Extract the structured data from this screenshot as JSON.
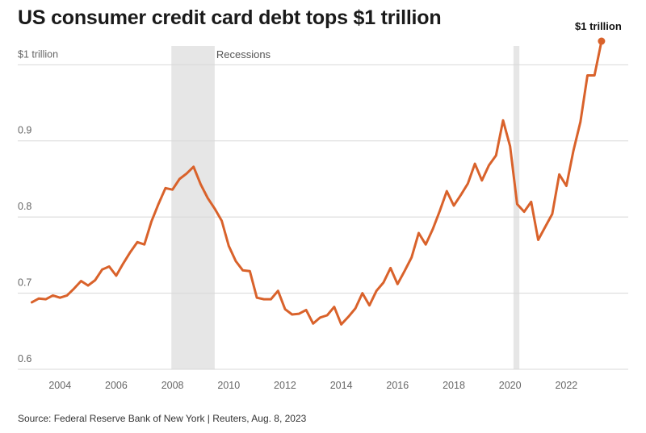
{
  "title": "US consumer credit card debt tops $1 trillion",
  "source": "Source: Federal Reserve Bank of New York | Reuters, Aug. 8, 2023",
  "colors": {
    "line": "#d9622b",
    "recession": "#e6e6e6",
    "grid": "#d8d8d8"
  },
  "chart_data": {
    "type": "line",
    "title": "US consumer credit card debt tops $1 trillion",
    "xlabel": "",
    "ylabel": "",
    "xlim": [
      2002.5,
      2024.2
    ],
    "ylim": [
      0.6,
      1.03
    ],
    "x_ticks": [
      {
        "value": 2004,
        "label": "2004"
      },
      {
        "value": 2006,
        "label": "2006"
      },
      {
        "value": 2008,
        "label": "2008"
      },
      {
        "value": 2010,
        "label": "2010"
      },
      {
        "value": 2012,
        "label": "2012"
      },
      {
        "value": 2014,
        "label": "2014"
      },
      {
        "value": 2016,
        "label": "2016"
      },
      {
        "value": 2018,
        "label": "2018"
      },
      {
        "value": 2020,
        "label": "2020"
      },
      {
        "value": 2022,
        "label": "2022"
      }
    ],
    "y_ticks": [
      {
        "value": 0.6,
        "label": "0.6"
      },
      {
        "value": 0.7,
        "label": "0.7"
      },
      {
        "value": 0.8,
        "label": "0.8"
      },
      {
        "value": 0.9,
        "label": "0.9"
      },
      {
        "value": 1.0,
        "label": "$1 trillion"
      }
    ],
    "recessions": {
      "label": "Recessions",
      "ranges": [
        [
          2007.96,
          2009.5
        ],
        [
          2020.12,
          2020.33
        ]
      ]
    },
    "end_label": "$1 trillion",
    "series": [
      {
        "values": [
          [
            2003.0,
            0.688
          ],
          [
            2003.25,
            0.693
          ],
          [
            2003.5,
            0.692
          ],
          [
            2003.75,
            0.697
          ],
          [
            2004.0,
            0.694
          ],
          [
            2004.25,
            0.697
          ],
          [
            2004.5,
            0.706
          ],
          [
            2004.75,
            0.716
          ],
          [
            2005.0,
            0.71
          ],
          [
            2005.25,
            0.717
          ],
          [
            2005.5,
            0.731
          ],
          [
            2005.75,
            0.735
          ],
          [
            2006.0,
            0.723
          ],
          [
            2006.25,
            0.739
          ],
          [
            2006.5,
            0.754
          ],
          [
            2006.75,
            0.767
          ],
          [
            2007.0,
            0.764
          ],
          [
            2007.25,
            0.794
          ],
          [
            2007.5,
            0.817
          ],
          [
            2007.75,
            0.838
          ],
          [
            2008.0,
            0.836
          ],
          [
            2008.25,
            0.85
          ],
          [
            2008.5,
            0.857
          ],
          [
            2008.75,
            0.866
          ],
          [
            2009.0,
            0.843
          ],
          [
            2009.25,
            0.825
          ],
          [
            2009.5,
            0.811
          ],
          [
            2009.75,
            0.795
          ],
          [
            2010.0,
            0.762
          ],
          [
            2010.25,
            0.742
          ],
          [
            2010.5,
            0.73
          ],
          [
            2010.75,
            0.729
          ],
          [
            2011.0,
            0.694
          ],
          [
            2011.25,
            0.692
          ],
          [
            2011.5,
            0.692
          ],
          [
            2011.75,
            0.703
          ],
          [
            2012.0,
            0.679
          ],
          [
            2012.25,
            0.672
          ],
          [
            2012.5,
            0.673
          ],
          [
            2012.75,
            0.678
          ],
          [
            2013.0,
            0.66
          ],
          [
            2013.25,
            0.668
          ],
          [
            2013.5,
            0.671
          ],
          [
            2013.75,
            0.682
          ],
          [
            2014.0,
            0.659
          ],
          [
            2014.25,
            0.669
          ],
          [
            2014.5,
            0.68
          ],
          [
            2014.75,
            0.7
          ],
          [
            2015.0,
            0.684
          ],
          [
            2015.25,
            0.703
          ],
          [
            2015.5,
            0.714
          ],
          [
            2015.75,
            0.733
          ],
          [
            2016.0,
            0.712
          ],
          [
            2016.25,
            0.729
          ],
          [
            2016.5,
            0.747
          ],
          [
            2016.75,
            0.779
          ],
          [
            2017.0,
            0.764
          ],
          [
            2017.25,
            0.784
          ],
          [
            2017.5,
            0.808
          ],
          [
            2017.75,
            0.834
          ],
          [
            2018.0,
            0.815
          ],
          [
            2018.25,
            0.829
          ],
          [
            2018.5,
            0.844
          ],
          [
            2018.75,
            0.87
          ],
          [
            2019.0,
            0.848
          ],
          [
            2019.25,
            0.868
          ],
          [
            2019.5,
            0.881
          ],
          [
            2019.75,
            0.927
          ],
          [
            2020.0,
            0.893
          ],
          [
            2020.25,
            0.817
          ],
          [
            2020.5,
            0.807
          ],
          [
            2020.75,
            0.82
          ],
          [
            2021.0,
            0.77
          ],
          [
            2021.25,
            0.787
          ],
          [
            2021.5,
            0.804
          ],
          [
            2021.75,
            0.856
          ],
          [
            2022.0,
            0.841
          ],
          [
            2022.25,
            0.887
          ],
          [
            2022.5,
            0.925
          ],
          [
            2022.75,
            0.986
          ],
          [
            2023.0,
            0.986
          ],
          [
            2023.25,
            1.031
          ]
        ]
      }
    ]
  }
}
